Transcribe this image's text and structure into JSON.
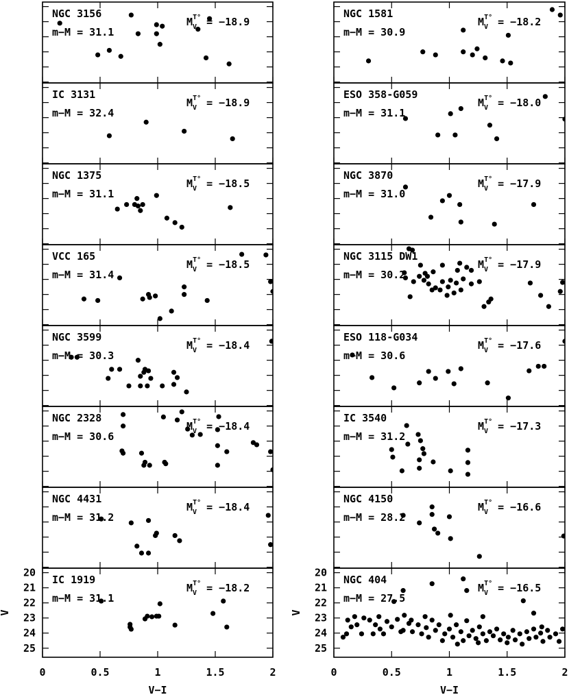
{
  "chart_data": [
    {
      "type": "scatter",
      "name": "NGC 3156",
      "distance_modulus": "m−M = 31.1",
      "mag_symbol": "M",
      "mag_sub": "V",
      "mag_sup": "T°",
      "abs_mag": "= −18.9",
      "xlim": [
        0,
        2
      ],
      "ylim": [
        19.7,
        25.06
      ],
      "xticks": [
        0,
        0.5,
        1,
        1.5,
        2
      ],
      "yticks": [
        20,
        21,
        22,
        23,
        24,
        25
      ],
      "color": "#000000",
      "x": [
        0.15,
        0.77,
        0.99,
        1.04,
        0.83,
        0.99,
        1.02,
        0.58,
        0.48,
        0.68,
        1.42,
        1.62,
        1.45,
        1.35
      ],
      "y": [
        21.1,
        20.56,
        21.2,
        21.3,
        21.8,
        21.8,
        22.5,
        22.9,
        23.2,
        23.3,
        23.4,
        23.8,
        20.8,
        21.5
      ]
    },
    {
      "type": "scatter",
      "name": "IC 3131",
      "distance_modulus": "m−M = 32.4",
      "mag_symbol": "M",
      "mag_sub": "V",
      "mag_sup": "T°",
      "abs_mag": "= −18.9",
      "xlim": [
        0,
        2
      ],
      "ylim": [
        19.7,
        25.06
      ],
      "xticks": [
        0,
        0.5,
        1,
        1.5,
        2
      ],
      "yticks": [
        20,
        21,
        22,
        23,
        24,
        25
      ],
      "color": "#000000",
      "x": [
        0.9,
        1.23,
        0.58,
        1.65
      ],
      "y": [
        22.3,
        22.9,
        23.2,
        23.4
      ]
    },
    {
      "type": "scatter",
      "name": "NGC 1375",
      "distance_modulus": "m−M = 31.1",
      "mag_symbol": "M",
      "mag_sub": "V",
      "mag_sup": "T°",
      "abs_mag": "= −18.5",
      "xlim": [
        0,
        2
      ],
      "ylim": [
        19.7,
        25.06
      ],
      "xticks": [
        0,
        0.5,
        1,
        1.5,
        2
      ],
      "yticks": [
        20,
        21,
        22,
        23,
        24,
        25
      ],
      "color": "#000000",
      "x": [
        0.65,
        0.73,
        0.8,
        0.83,
        0.87,
        0.85,
        0.82,
        0.99,
        1.08,
        1.15,
        1.21,
        1.63
      ],
      "y": [
        22.7,
        22.4,
        22.4,
        22.5,
        22.4,
        22.8,
        22.0,
        21.8,
        23.3,
        23.6,
        23.9,
        22.6
      ]
    },
    {
      "type": "scatter",
      "name": "VCC 165",
      "distance_modulus": "m−M = 31.4",
      "mag_symbol": "M",
      "mag_sub": "V",
      "mag_sup": "T°",
      "abs_mag": "= −18.5",
      "xlim": [
        0,
        2
      ],
      "ylim": [
        19.7,
        25.06
      ],
      "xticks": [
        0,
        0.5,
        1,
        1.5,
        2
      ],
      "yticks": [
        20,
        21,
        22,
        23,
        24,
        25
      ],
      "color": "#000000",
      "x": [
        1.73,
        1.94,
        0.36,
        0.48,
        0.67,
        0.92,
        0.93,
        0.98,
        0.87,
        1.23,
        1.23,
        1.12,
        1.02,
        1.43,
        1.98,
        2.0
      ],
      "y": [
        20.34,
        20.38,
        23.3,
        23.4,
        21.9,
        23.0,
        23.2,
        23.1,
        23.3,
        22.5,
        23.0,
        24.1,
        24.6,
        23.4,
        22.15,
        22.8
      ]
    },
    {
      "type": "scatter",
      "name": "NGC 3599",
      "distance_modulus": "m−M = 30.3",
      "mag_symbol": "M",
      "mag_sub": "V",
      "mag_sup": "T°",
      "abs_mag": "= −18.4",
      "xlim": [
        0,
        2
      ],
      "ylim": [
        19.7,
        25.06
      ],
      "xticks": [
        0,
        0.5,
        1,
        1.5,
        2
      ],
      "yticks": [
        20,
        21,
        22,
        23,
        24,
        25
      ],
      "color": "#000000",
      "x": [
        0.25,
        0.3,
        0.83,
        0.89,
        0.92,
        0.6,
        0.57,
        0.67,
        0.85,
        0.88,
        0.94,
        0.75,
        0.85,
        0.91,
        1.14,
        1.17,
        1.14,
        1.04,
        1.25,
        1.99
      ],
      "y": [
        21.8,
        21.8,
        22.0,
        22.6,
        22.7,
        22.6,
        23.2,
        22.6,
        23.06,
        22.8,
        23.2,
        23.7,
        23.7,
        23.7,
        22.8,
        23.15,
        23.6,
        23.7,
        24.1,
        20.74
      ]
    },
    {
      "type": "scatter",
      "name": "NGC 2328",
      "distance_modulus": "m−M = 30.6",
      "mag_symbol": "M",
      "mag_sub": "V",
      "mag_sup": "T°",
      "abs_mag": "= −18.4",
      "xlim": [
        0,
        2
      ],
      "ylim": [
        19.7,
        25.06
      ],
      "xticks": [
        0,
        0.5,
        1,
        1.5,
        2
      ],
      "yticks": [
        20,
        21,
        22,
        23,
        24,
        25
      ],
      "color": "#000000",
      "x": [
        0.7,
        0.7,
        0.69,
        0.7,
        0.86,
        0.89,
        0.88,
        0.93,
        1.06,
        1.07,
        1.05,
        1.17,
        1.3,
        1.37,
        1.53,
        1.52,
        1.52,
        1.52,
        1.6,
        1.83,
        1.86,
        1.98,
        2.0,
        1.21,
        1.26
      ],
      "y": [
        20.24,
        21.0,
        22.65,
        22.8,
        22.8,
        23.4,
        23.6,
        23.6,
        23.4,
        23.5,
        20.4,
        20.6,
        21.6,
        21.56,
        20.38,
        21.24,
        22.3,
        23.6,
        22.7,
        22.1,
        22.24,
        22.7,
        23.9,
        20.06,
        21.2
      ]
    },
    {
      "type": "scatter",
      "name": "NGC 4431",
      "distance_modulus": "m−M = 31.2",
      "mag_symbol": "M",
      "mag_sub": "V",
      "mag_sup": "T°",
      "abs_mag": "= −18.4",
      "xlim": [
        0,
        2
      ],
      "ylim": [
        19.7,
        25.06
      ],
      "xticks": [
        0,
        0.5,
        1,
        1.5,
        2
      ],
      "yticks": [
        20,
        21,
        22,
        23,
        24,
        25
      ],
      "color": "#000000",
      "x": [
        0.51,
        0.77,
        0.92,
        0.98,
        0.99,
        0.82,
        0.86,
        0.92,
        1.15,
        1.19,
        1.98,
        1.96
      ],
      "y": [
        21.8,
        22.06,
        21.9,
        22.9,
        22.74,
        23.6,
        24.06,
        24.06,
        22.9,
        23.24,
        23.5,
        21.56
      ]
    },
    {
      "type": "scatter",
      "name": "IC 1919",
      "distance_modulus": "m−M = 31.1",
      "mag_symbol": "M",
      "mag_sub": "V",
      "mag_sup": "T°",
      "abs_mag": "= −18.2",
      "xlim": [
        0,
        2
      ],
      "ylim": [
        19.7,
        25.6
      ],
      "xticks": [
        0,
        0.5,
        1,
        1.5,
        2
      ],
      "yticks": [
        20,
        21,
        22,
        23,
        24,
        25
      ],
      "color": "#000000",
      "xlabel": "V−I",
      "ylabel": "V",
      "x": [
        0.51,
        0.76,
        0.76,
        0.77,
        0.89,
        0.91,
        0.95,
        0.99,
        1.01,
        1.02,
        1.15,
        1.48,
        1.57,
        1.6
      ],
      "y": [
        21.88,
        23.42,
        23.6,
        23.74,
        23.06,
        22.88,
        22.92,
        22.88,
        22.88,
        22.06,
        23.47,
        22.7,
        21.88,
        23.6
      ]
    },
    {
      "type": "scatter",
      "name": "NGC 1581",
      "distance_modulus": "m−M = 30.9",
      "mag_symbol": "M",
      "mag_sub": "V",
      "mag_sup": "T°",
      "abs_mag": "= −18.2",
      "xlim": [
        0,
        2
      ],
      "ylim": [
        19.7,
        25.06
      ],
      "xticks": [
        0,
        0.5,
        1,
        1.5,
        2
      ],
      "yticks": [
        20,
        21,
        22,
        23,
        24,
        25
      ],
      "color": "#000000",
      "x": [
        1.89,
        1.96,
        1.12,
        1.51,
        0.77,
        0.88,
        1.12,
        1.2,
        1.24,
        1.31,
        1.46,
        1.53,
        0.3
      ],
      "y": [
        20.2,
        20.56,
        21.56,
        21.9,
        23.0,
        23.2,
        23.0,
        23.2,
        22.8,
        23.4,
        23.6,
        23.74,
        23.6
      ]
    },
    {
      "type": "scatter",
      "name": "ESO 358-G059",
      "distance_modulus": "m−M = 31.1",
      "mag_symbol": "M",
      "mag_sub": "V",
      "mag_sup": "T°",
      "abs_mag": "= −18.0",
      "xlim": [
        0,
        2
      ],
      "ylim": [
        19.7,
        25.06
      ],
      "xticks": [
        0,
        0.5,
        1,
        1.5,
        2
      ],
      "yticks": [
        20,
        21,
        22,
        23,
        24,
        25
      ],
      "color": "#000000",
      "x": [
        0.62,
        1.01,
        1.1,
        1.05,
        0.9,
        1.35,
        1.41,
        1.83,
        2.0
      ],
      "y": [
        22.06,
        21.74,
        21.4,
        23.15,
        23.15,
        22.5,
        23.4,
        20.6,
        22.1
      ]
    },
    {
      "type": "scatter",
      "name": "NGC 3870",
      "distance_modulus": "m−M = 31.0",
      "mag_symbol": "M",
      "mag_sub": "V",
      "mag_sup": "T°",
      "abs_mag": "= −17.9",
      "xlim": [
        0,
        2
      ],
      "ylim": [
        19.7,
        25.06
      ],
      "xticks": [
        0,
        0.5,
        1,
        1.5,
        2
      ],
      "yticks": [
        20,
        21,
        22,
        23,
        24,
        25
      ],
      "color": "#000000",
      "x": [
        0.62,
        1.0,
        0.94,
        1.09,
        0.84,
        1.1,
        1.39,
        1.73
      ],
      "y": [
        21.24,
        21.8,
        22.15,
        22.4,
        23.24,
        23.56,
        23.7,
        22.4
      ]
    },
    {
      "type": "scatter",
      "name": "NGC 3115 DW1",
      "distance_modulus": "m−M = 30.2",
      "mag_symbol": "M",
      "mag_sub": "V",
      "mag_sup": "T°",
      "abs_mag": "= −17.9",
      "xlim": [
        0,
        2
      ],
      "ylim": [
        19.7,
        25.06
      ],
      "xticks": [
        0,
        0.5,
        1,
        1.5,
        2
      ],
      "yticks": [
        20,
        21,
        22,
        23,
        24,
        25
      ],
      "color": "#000000",
      "x": [
        0.65,
        0.68,
        0.61,
        0.62,
        0.66,
        0.74,
        0.78,
        0.81,
        0.82,
        0.86,
        0.88,
        0.85,
        0.92,
        0.94,
        0.94,
        0.99,
        1.01,
        1.04,
        0.98,
        1.06,
        1.07,
        1.09,
        1.1,
        1.12,
        1.15,
        1.19,
        1.19,
        1.26,
        1.3,
        1.34,
        1.36,
        1.7,
        1.79,
        1.86,
        1.96,
        1.98,
        0.79,
        0.75,
        0.69
      ],
      "y": [
        19.97,
        20.06,
        21.56,
        21.9,
        23.15,
        21.8,
        22.06,
        21.8,
        22.3,
        21.5,
        22.56,
        22.7,
        22.7,
        22.15,
        21.06,
        22.5,
        22.06,
        22.9,
        23.06,
        22.24,
        21.4,
        20.93,
        22.7,
        21.97,
        21.2,
        22.3,
        21.4,
        22.15,
        23.8,
        23.5,
        23.3,
        22.24,
        23.06,
        23.8,
        22.8,
        22.2,
        21.6,
        21.06,
        22.15
      ]
    },
    {
      "type": "scatter",
      "name": "ESO 118-G034",
      "distance_modulus": "m−M = 30.6",
      "mag_symbol": "M",
      "mag_sub": "V",
      "mag_sup": "T°",
      "abs_mag": "= −17.6",
      "xlim": [
        0,
        2
      ],
      "ylim": [
        19.7,
        25.06
      ],
      "xticks": [
        0,
        0.5,
        1,
        1.5,
        2
      ],
      "yticks": [
        20,
        21,
        22,
        23,
        24,
        25
      ],
      "color": "#000000",
      "x": [
        0.16,
        0.33,
        0.52,
        0.74,
        0.82,
        0.88,
        0.99,
        1.04,
        1.1,
        1.33,
        1.51,
        1.69,
        1.77,
        1.82,
        2.0
      ],
      "y": [
        21.65,
        23.15,
        23.83,
        23.5,
        22.74,
        23.2,
        22.74,
        23.56,
        22.56,
        23.5,
        24.5,
        22.7,
        22.4,
        22.4,
        20.74
      ]
    },
    {
      "type": "scatter",
      "name": "IC 3540",
      "distance_modulus": "m−M = 31.2",
      "mag_symbol": "M",
      "mag_sub": "V",
      "mag_sup": "T°",
      "abs_mag": "= −17.3",
      "xlim": [
        0,
        2
      ],
      "ylim": [
        19.7,
        25.06
      ],
      "xticks": [
        0,
        0.5,
        1,
        1.5,
        2
      ],
      "yticks": [
        20,
        21,
        22,
        23,
        24,
        25
      ],
      "color": "#000000",
      "x": [
        0.73,
        0.75,
        0.5,
        0.51,
        0.59,
        0.74,
        0.74,
        0.78,
        0.77,
        0.86,
        1.01,
        1.16,
        1.16,
        1.16,
        0.63,
        0.64
      ],
      "y": [
        21.56,
        21.97,
        22.56,
        23.06,
        23.97,
        23.8,
        23.24,
        22.83,
        22.5,
        23.38,
        23.97,
        22.6,
        23.42,
        24.2,
        20.97,
        22.2
      ]
    },
    {
      "type": "scatter",
      "name": "NGC 4150",
      "distance_modulus": "m−M = 28.2",
      "mag_symbol": "M",
      "mag_sub": "V",
      "mag_sup": "T°",
      "abs_mag": "= −16.6",
      "xlim": [
        0,
        2
      ],
      "ylim": [
        19.7,
        25.06
      ],
      "xticks": [
        0,
        0.5,
        1,
        1.5,
        2
      ],
      "yticks": [
        20,
        21,
        22,
        23,
        24,
        25
      ],
      "color": "#000000",
      "x": [
        0.85,
        0.85,
        0.6,
        1.0,
        0.87,
        0.9,
        1.01,
        1.26,
        1.99,
        0.74
      ],
      "y": [
        21.0,
        21.5,
        21.56,
        21.65,
        22.47,
        22.74,
        23.1,
        24.28,
        22.93,
        22.06
      ]
    },
    {
      "type": "scatter",
      "name": "NGC 404",
      "distance_modulus": "m−M = 27.5",
      "mag_symbol": "M",
      "mag_sub": "V",
      "mag_sup": "T°",
      "abs_mag": "= −16.5",
      "xlim": [
        0,
        2
      ],
      "ylim": [
        19.7,
        25.6
      ],
      "xticks": [
        0,
        0.5,
        1,
        1.5,
        2
      ],
      "yticks": [
        20,
        21,
        22,
        23,
        24,
        25
      ],
      "color": "#000000",
      "xlabel": "V−I",
      "ylabel": "V",
      "x": [
        0.12,
        0.15,
        0.2,
        0.26,
        0.31,
        0.36,
        0.4,
        0.46,
        0.5,
        0.55,
        0.6,
        0.65,
        0.68,
        0.73,
        0.76,
        0.8,
        0.85,
        0.88,
        0.91,
        0.96,
        1.0,
        1.03,
        1.06,
        1.1,
        1.12,
        1.15,
        1.17,
        1.2,
        1.23,
        1.26,
        1.29,
        1.32,
        1.35,
        1.38,
        1.41,
        1.44,
        1.47,
        1.51,
        1.55,
        1.57,
        1.61,
        1.63,
        1.67,
        1.69,
        1.73,
        1.75,
        1.79,
        1.81,
        1.85,
        1.87,
        1.92,
        1.95,
        1.98,
        0.08,
        0.11,
        0.24,
        0.34,
        0.43,
        0.58,
        0.67,
        0.82,
        0.94,
        1.07,
        1.25,
        1.5,
        1.8,
        1.29,
        1.01,
        0.79,
        0.61,
        0.39,
        0.18,
        1.12,
        0.85,
        0.6,
        1.15,
        1.73,
        1.64,
        0.52
      ],
      "y": [
        23.14,
        23.59,
        23.45,
        23.0,
        23.14,
        23.45,
        23.73,
        23.23,
        23.59,
        23.09,
        23.82,
        23.36,
        23.91,
        23.45,
        24.05,
        23.64,
        23.14,
        23.82,
        23.45,
        24.05,
        23.73,
        24.27,
        23.45,
        23.91,
        24.5,
        23.18,
        24.18,
        23.82,
        24.36,
        23.59,
        24.05,
        24.5,
        23.91,
        24.18,
        23.73,
        24.45,
        24.05,
        24.27,
        23.82,
        24.45,
        24.05,
        24.73,
        23.91,
        24.36,
        23.73,
        24.27,
        24.0,
        24.55,
        23.82,
        24.27,
        24.05,
        24.55,
        23.73,
        24.27,
        24.05,
        24.05,
        24.05,
        24.05,
        23.91,
        23.14,
        24.27,
        24.5,
        24.73,
        24.64,
        24.64,
        23.59,
        22.91,
        22.82,
        22.91,
        22.82,
        22.91,
        22.91,
        20.41,
        20.73,
        21.18,
        21.18,
        22.68,
        21.86,
        21.91
      ]
    }
  ]
}
